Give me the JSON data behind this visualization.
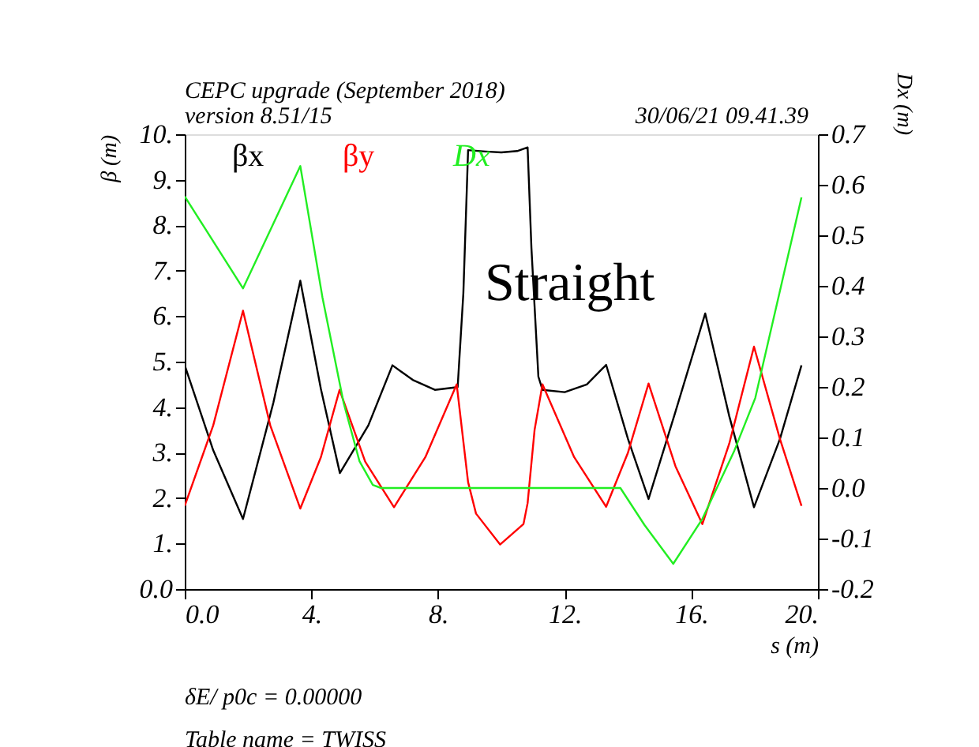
{
  "chart_data": {
    "type": "line",
    "title": "CEPC upgrade (September 2018)",
    "subtitle": "version 8.51/15",
    "xlabel": "s (m)",
    "ylabel": "β (m)",
    "y2label": "Dx (m)",
    "xlim": [
      0,
      20
    ],
    "xticks": [
      {
        "value": 0,
        "label": "0.0"
      },
      {
        "value": 4,
        "label": "4."
      },
      {
        "value": 8,
        "label": "8."
      },
      {
        "value": 12,
        "label": "12."
      },
      {
        "value": 16,
        "label": "16."
      },
      {
        "value": 20,
        "label": "20."
      }
    ],
    "ylim": [
      0,
      10
    ],
    "yticks": [
      {
        "value": 0,
        "label": "0.0"
      },
      {
        "value": 1,
        "label": "1."
      },
      {
        "value": 2,
        "label": "2."
      },
      {
        "value": 3,
        "label": "3."
      },
      {
        "value": 4,
        "label": "4."
      },
      {
        "value": 5,
        "label": "5."
      },
      {
        "value": 6,
        "label": "6."
      },
      {
        "value": 7,
        "label": "7."
      },
      {
        "value": 8,
        "label": "8."
      },
      {
        "value": 9,
        "label": "9."
      },
      {
        "value": 10,
        "label": "10."
      }
    ],
    "y2lim": [
      -0.2,
      0.7
    ],
    "y2ticks": [
      -0.2,
      -0.1,
      {
        "value": 0,
        "label": "0.0"
      },
      0.1,
      0.2,
      0.3,
      0.4,
      0.5,
      0.6,
      0.7
    ],
    "grid": false,
    "marker": "none",
    "line_style": "solid",
    "series": [
      {
        "name": "βx",
        "color": "#000000",
        "x": [
          0,
          0.9,
          1.84,
          2.8,
          3.65,
          4.3,
          4.9,
          5.8,
          6.56,
          7.2,
          7.9,
          8.62,
          8.8,
          8.95,
          9.5,
          10.0,
          10.5,
          10.83,
          10.95,
          11.17,
          11.3,
          12.0,
          12.7,
          13.31,
          14.0,
          14.65,
          15.5,
          16.44,
          17.2,
          17.98,
          18.8,
          19.48
        ],
        "values": [
          4.92,
          3.05,
          1.54,
          4.1,
          6.78,
          4.4,
          2.55,
          3.6,
          4.92,
          4.6,
          4.38,
          4.44,
          6.5,
          9.65,
          9.62,
          9.6,
          9.63,
          9.71,
          7.5,
          4.67,
          4.38,
          4.33,
          4.5,
          4.93,
          3.3,
          1.98,
          3.9,
          6.06,
          3.8,
          1.8,
          3.3,
          4.92
        ]
      },
      {
        "name": "βy",
        "color": "#ff0000",
        "x": [
          0,
          0.9,
          1.84,
          2.7,
          3.65,
          4.3,
          4.89,
          5.7,
          6.61,
          7.6,
          8.59,
          8.95,
          9.2,
          9.96,
          10.7,
          10.83,
          11.05,
          11.3,
          12.3,
          13.31,
          14.0,
          14.65,
          15.5,
          16.35,
          17.2,
          17.98,
          18.8,
          19.48
        ],
        "values": [
          1.83,
          3.6,
          6.12,
          3.6,
          1.77,
          2.9,
          4.38,
          2.8,
          1.8,
          2.9,
          4.5,
          2.35,
          1.66,
          0.98,
          1.43,
          1.89,
          3.5,
          4.5,
          2.9,
          1.81,
          3.0,
          4.52,
          2.7,
          1.43,
          3.2,
          5.33,
          3.3,
          1.83
        ]
      },
      {
        "name": "Dx",
        "color": "#22ee22",
        "axis": "y2",
        "x": [
          0,
          1.84,
          3.65,
          4.35,
          5.02,
          5.52,
          5.94,
          6.2,
          13.76,
          14.52,
          15.43,
          16.35,
          17.36,
          18.02,
          19.48
        ],
        "values": [
          0.577,
          0.395,
          0.637,
          0.377,
          0.168,
          0.053,
          0.006,
          0.0,
          0.0,
          -0.073,
          -0.15,
          -0.061,
          0.074,
          0.178,
          0.575
        ]
      }
    ],
    "annotations": [
      "30/06/21  09.41.39",
      "Straight",
      "δE/ p0c  =   0.00000",
      "Table name = TWISS"
    ]
  }
}
